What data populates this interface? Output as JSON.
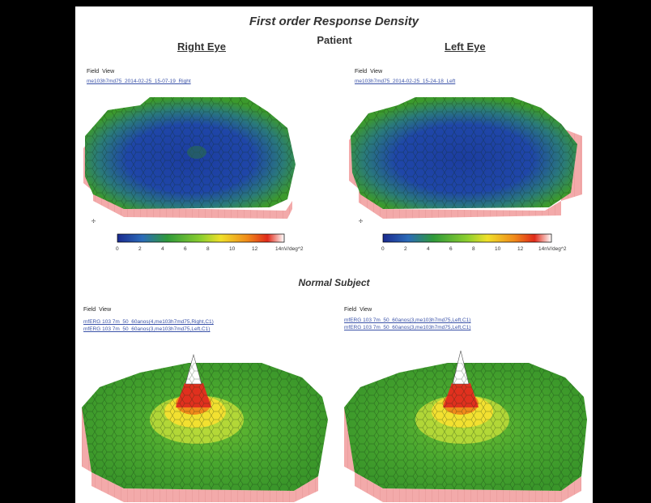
{
  "main_title": "First order Response Density",
  "patient": {
    "label": "Patient",
    "right": {
      "title": "Right Eye",
      "field_label": "Field",
      "view_label": "View",
      "file": "me103h7md75_2014-02-25_15-07-19_Right"
    },
    "left": {
      "title": "Left Eye",
      "field_label": "Field",
      "view_label": "View",
      "file": "me103h7md75_2014-02-25_15-24-18_Left"
    }
  },
  "scale": {
    "ticks": [
      "0",
      "2",
      "4",
      "6",
      "8",
      "10",
      "12"
    ],
    "unit": "14nV/deg^2",
    "colors": [
      "#1a2a8f",
      "#2b6bb8",
      "#2f9a3a",
      "#8ccf2f",
      "#f0e02a",
      "#f08a1a",
      "#e02a1a",
      "#ffffff"
    ]
  },
  "normal": {
    "label": "Normal Subject",
    "right": {
      "field_label": "Field",
      "view_label": "View",
      "files": [
        "mfERG 103 7m_50_60anos(4,me103h7md75,Right,C1)",
        "mfERG 103 7m_50_60anos(3,me103h7md75,Left,C1)"
      ]
    },
    "left": {
      "field_label": "Field",
      "view_label": "View",
      "files": [
        "mfERG 103 7m_50_60anos(3,me103h7md75,Left,C1)",
        "mfERG 103 7m_50_60anos(3,me103h7md75,Left,C1)"
      ]
    }
  },
  "colors": {
    "background": "#000000",
    "page": "#ffffff",
    "base_pink": "#f2a9a9",
    "field_green": "#3b9a2e",
    "patient_blue": "#1f3f9a",
    "peak_red": "#e0301e",
    "peak_yellow": "#f2e030"
  }
}
